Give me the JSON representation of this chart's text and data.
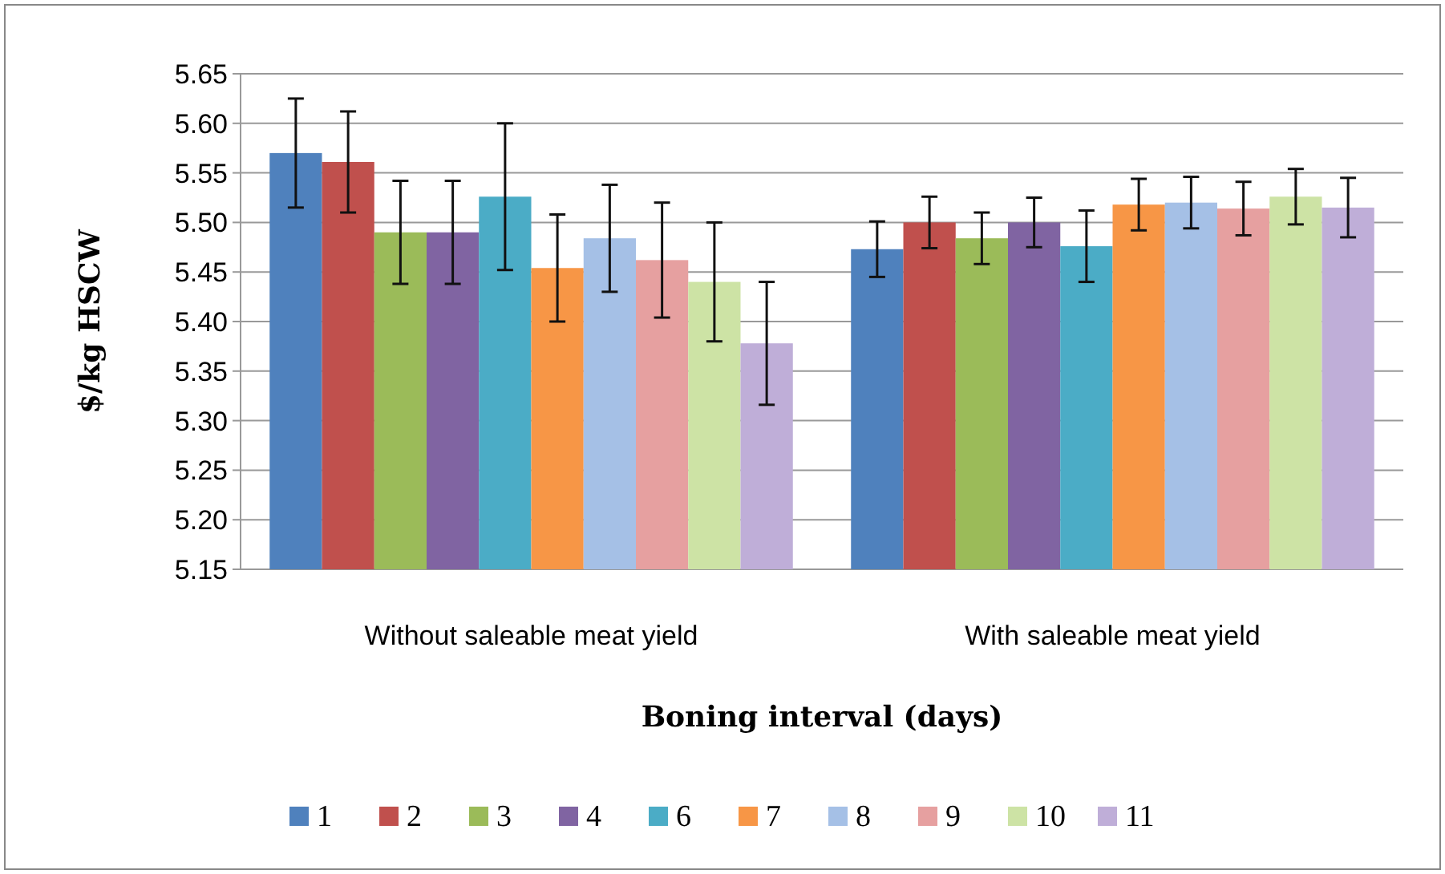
{
  "chart_data": {
    "type": "bar",
    "xlabel": "Boning interval (days)",
    "ylabel": "$/kg HSCW",
    "categories": [
      "Without saleable meat yield",
      "With saleable meat yield"
    ],
    "series": [
      {
        "name": "1",
        "color": "#4f81bd",
        "values": [
          5.57,
          5.473
        ],
        "errors": [
          0.055,
          0.028
        ]
      },
      {
        "name": "2",
        "color": "#c0504d",
        "values": [
          5.561,
          5.5
        ],
        "errors": [
          0.051,
          0.026
        ]
      },
      {
        "name": "3",
        "color": "#9bbb59",
        "values": [
          5.49,
          5.484
        ],
        "errors": [
          0.052,
          0.026
        ]
      },
      {
        "name": "4",
        "color": "#8064a2",
        "values": [
          5.49,
          5.5
        ],
        "errors": [
          0.052,
          0.025
        ]
      },
      {
        "name": "6",
        "color": "#4bacc6",
        "values": [
          5.526,
          5.476
        ],
        "errors": [
          0.074,
          0.036
        ]
      },
      {
        "name": "7",
        "color": "#f79646",
        "values": [
          5.454,
          5.518
        ],
        "errors": [
          0.054,
          0.026
        ]
      },
      {
        "name": "8",
        "color": "#a5c0e6",
        "values": [
          5.484,
          5.52
        ],
        "errors": [
          0.054,
          0.026
        ]
      },
      {
        "name": "9",
        "color": "#e6a0a0",
        "values": [
          5.462,
          5.514
        ],
        "errors": [
          0.058,
          0.027
        ]
      },
      {
        "name": "10",
        "color": "#cde3a5",
        "values": [
          5.44,
          5.526
        ],
        "errors": [
          0.06,
          0.028
        ]
      },
      {
        "name": "11",
        "color": "#bfaed8",
        "values": [
          5.378,
          5.515
        ],
        "errors": [
          0.062,
          0.03
        ]
      }
    ],
    "ylim": [
      5.15,
      5.65
    ],
    "yticks": [
      {
        "value": 5.15,
        "label": "5.15"
      },
      {
        "value": 5.2,
        "label": "5.20"
      },
      {
        "value": 5.25,
        "label": "5.25"
      },
      {
        "value": 5.3,
        "label": "5.30"
      },
      {
        "value": 5.35,
        "label": "5.35"
      },
      {
        "value": 5.4,
        "label": "5.40"
      },
      {
        "value": 5.45,
        "label": "5.45"
      },
      {
        "value": 5.5,
        "label": "5.50"
      },
      {
        "value": 5.55,
        "label": "5.55"
      },
      {
        "value": 5.6,
        "label": "5.60"
      },
      {
        "value": 5.65,
        "label": "5.65"
      }
    ],
    "grid": "y",
    "legend": "bottom"
  }
}
